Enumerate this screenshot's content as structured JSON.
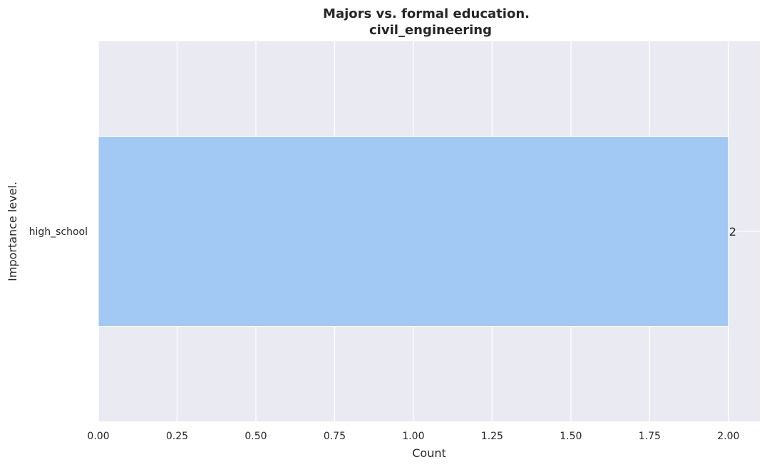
{
  "chart_data": {
    "type": "bar",
    "orientation": "horizontal",
    "title_line1": "Majors vs. formal education.",
    "title_line2": "civil_engineering",
    "xlabel": "Count",
    "ylabel": "Importance level.",
    "categories": [
      "high_school"
    ],
    "values": [
      2
    ],
    "data_labels": [
      "2"
    ],
    "xlim": [
      0,
      2.1
    ],
    "xticks": [
      0,
      0.25,
      0.5,
      0.75,
      1.0,
      1.25,
      1.5,
      1.75,
      2.0
    ],
    "xtick_labels": [
      "0.00",
      "0.25",
      "0.50",
      "0.75",
      "1.00",
      "1.25",
      "1.50",
      "1.75",
      "2.00"
    ],
    "grid": true,
    "colors": {
      "background": "#eaeaf2",
      "bar": "#a1c9f4",
      "grid": "#ffffff",
      "text": "#262626"
    }
  }
}
